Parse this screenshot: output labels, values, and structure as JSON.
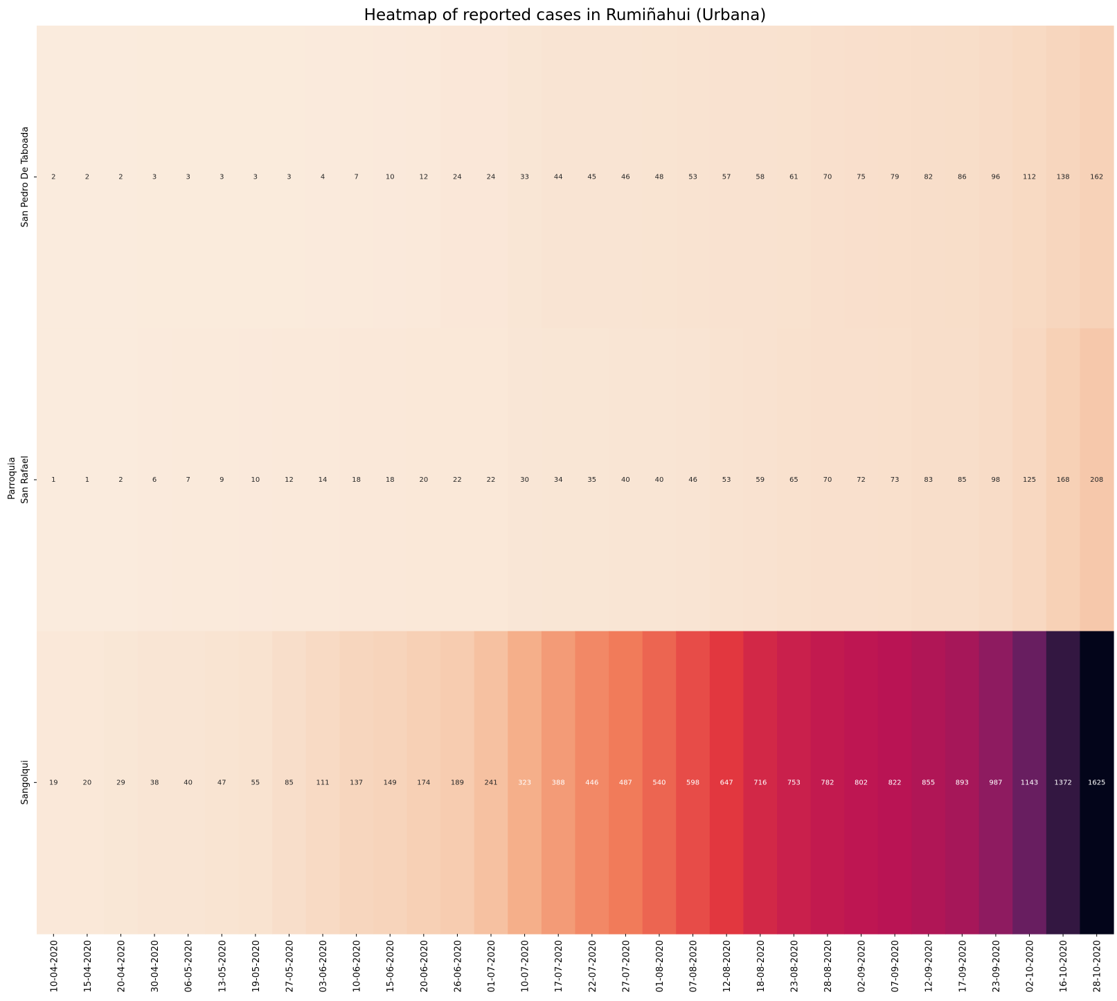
{
  "chart_data": {
    "type": "heatmap",
    "title": "Heatmap of reported cases in Rumiñahui (Urbana)",
    "xlabel": "",
    "ylabel": "Parroquia",
    "rows": [
      "San Pedro De Taboada",
      "San Rafael",
      "Sangolqui"
    ],
    "x_tick_labels": [
      "10-04-2020",
      "15-04-2020",
      "20-04-2020",
      "30-04-2020",
      "06-05-2020",
      "13-05-2020",
      "19-05-2020",
      "27-05-2020",
      "03-06-2020",
      "10-06-2020",
      "15-06-2020",
      "20-06-2020",
      "26-06-2020",
      "01-07-2020",
      "10-07-2020",
      "17-07-2020",
      "22-07-2020",
      "27-07-2020",
      "01-08-2020",
      "07-08-2020",
      "12-08-2020",
      "18-08-2020",
      "23-08-2020",
      "28-08-2020",
      "02-09-2020",
      "07-09-2020",
      "12-09-2020",
      "17-09-2020",
      "23-09-2020",
      "02-10-2020",
      "16-10-2020",
      "28-10-2020"
    ],
    "annotated_values": [
      [
        2,
        2,
        2,
        3,
        3,
        3,
        3,
        3,
        4,
        7,
        10,
        12,
        24,
        24,
        33,
        44,
        45,
        46,
        48,
        53,
        57,
        58,
        61,
        70,
        75,
        79,
        82,
        86,
        96,
        112,
        138,
        162
      ],
      [
        1,
        1,
        2,
        6,
        7,
        9,
        10,
        12,
        14,
        18,
        18,
        20,
        22,
        22,
        30,
        34,
        35,
        40,
        40,
        46,
        53,
        59,
        65,
        70,
        72,
        73,
        83,
        85,
        98,
        125,
        168,
        208
      ],
      [
        19,
        20,
        29,
        38,
        40,
        47,
        55,
        85,
        111,
        137,
        149,
        174,
        189,
        241,
        323,
        388,
        446,
        487,
        540,
        598,
        647,
        716,
        753,
        782,
        802,
        822,
        855,
        893,
        987,
        1143,
        1372,
        1625
      ]
    ],
    "colormap": "rocket_r",
    "value_range": [
      0,
      1625
    ],
    "colorbar": false
  }
}
